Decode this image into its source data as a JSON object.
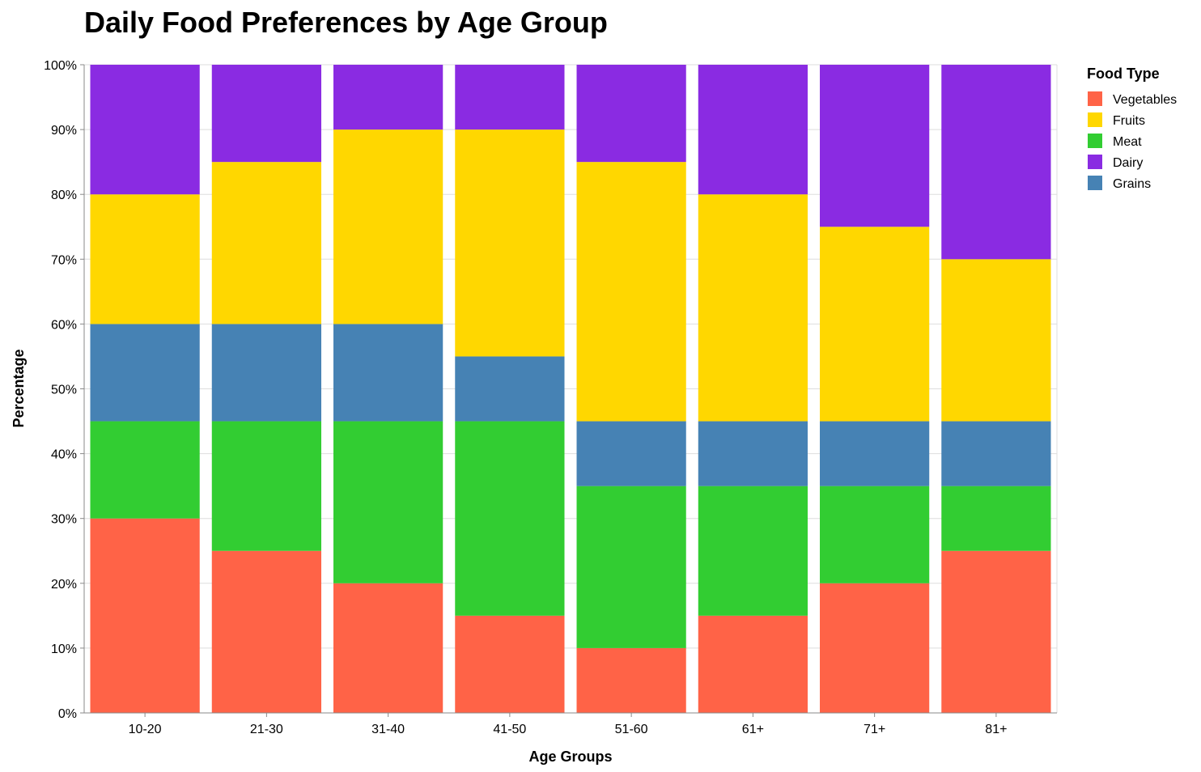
{
  "chart_data": {
    "type": "bar",
    "stacked": "normalized",
    "title": "Daily Food Preferences by Age Group",
    "xlabel": "Age Groups",
    "ylabel": "Percentage",
    "ylim": [
      0,
      100
    ],
    "y_ticks": [
      "0%",
      "10%",
      "20%",
      "30%",
      "40%",
      "50%",
      "60%",
      "70%",
      "80%",
      "90%",
      "100%"
    ],
    "grid": true,
    "legend_title": "Food Type",
    "legend_position": "top-right",
    "categories": [
      "10-20",
      "21-30",
      "31-40",
      "41-50",
      "51-60",
      "61+",
      "71+",
      "81+"
    ],
    "stack_order": [
      "Vegetables",
      "Meat",
      "Grains",
      "Fruits",
      "Dairy"
    ],
    "series": [
      {
        "name": "Vegetables",
        "color": "#ff6347",
        "values": [
          30,
          25,
          20,
          15,
          10,
          15,
          20,
          25
        ]
      },
      {
        "name": "Fruits",
        "color": "#ffd700",
        "values": [
          20,
          25,
          30,
          35,
          40,
          35,
          30,
          25
        ]
      },
      {
        "name": "Meat",
        "color": "#32cd32",
        "values": [
          15,
          20,
          25,
          30,
          25,
          20,
          15,
          10
        ]
      },
      {
        "name": "Dairy",
        "color": "#8a2be2",
        "values": [
          20,
          15,
          10,
          10,
          15,
          20,
          25,
          30
        ]
      },
      {
        "name": "Grains",
        "color": "#4682b4",
        "values": [
          15,
          15,
          15,
          10,
          10,
          10,
          10,
          10
        ]
      }
    ]
  }
}
